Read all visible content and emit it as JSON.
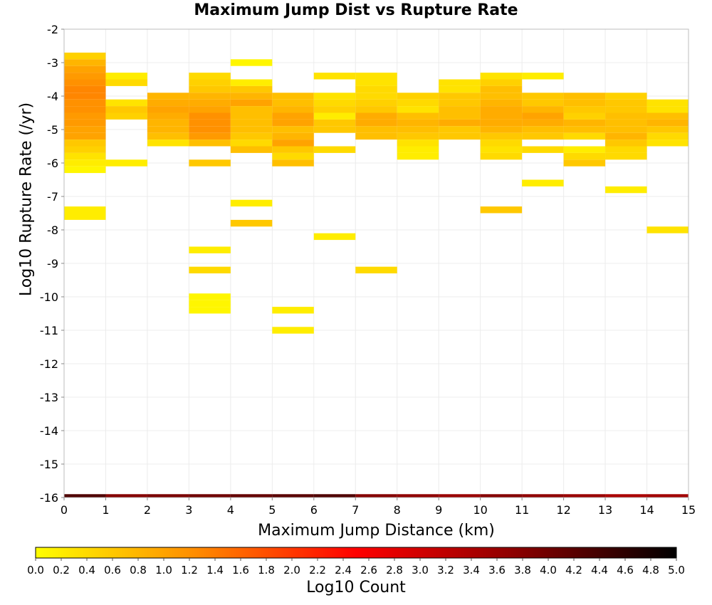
{
  "chart_data": {
    "type": "heatmap",
    "title": "Maximum Jump Dist vs Rupture Rate",
    "xlabel": "Maximum Jump Distance (km)",
    "ylabel": "Log10 Rupture Rate (/yr)",
    "xlim": [
      0,
      15
    ],
    "ylim": [
      -16,
      -2
    ],
    "x_ticks": [
      "0",
      "1",
      "2",
      "3",
      "4",
      "5",
      "6",
      "7",
      "8",
      "9",
      "10",
      "11",
      "12",
      "13",
      "14",
      "15"
    ],
    "y_ticks": [
      "-2",
      "-3",
      "-4",
      "-5",
      "-6",
      "-7",
      "-8",
      "-9",
      "-10",
      "-11",
      "-12",
      "-13",
      "-14",
      "-15",
      "-16"
    ],
    "grid": true,
    "bin_width_x": 1,
    "bin_height_y": 0.2,
    "colorbar": {
      "label": "Log10 Count",
      "range": [
        0.0,
        5.0
      ],
      "ticks": [
        "0.0",
        "0.2",
        "0.4",
        "0.6",
        "0.8",
        "1.0",
        "1.2",
        "1.4",
        "1.6",
        "1.8",
        "2.0",
        "2.2",
        "2.4",
        "2.6",
        "2.8",
        "3.0",
        "3.2",
        "3.4",
        "3.6",
        "3.8",
        "4.0",
        "4.2",
        "4.4",
        "4.6",
        "4.8",
        "5.0"
      ],
      "colors": [
        "#ffff00",
        "#ff8c00",
        "#ff0000",
        "#8b0000",
        "#000000"
      ]
    },
    "cells": [
      {
        "x": 0,
        "y": -2.8,
        "v": 0.5
      },
      {
        "x": 0,
        "y": -3.0,
        "v": 0.8
      },
      {
        "x": 0,
        "y": -3.2,
        "v": 1.0
      },
      {
        "x": 0,
        "y": -3.4,
        "v": 1.1
      },
      {
        "x": 0,
        "y": -3.6,
        "v": 1.2
      },
      {
        "x": 0,
        "y": -3.8,
        "v": 1.3
      },
      {
        "x": 0,
        "y": -4.0,
        "v": 1.3
      },
      {
        "x": 0,
        "y": -4.2,
        "v": 1.2
      },
      {
        "x": 0,
        "y": -4.4,
        "v": 1.2
      },
      {
        "x": 0,
        "y": -4.6,
        "v": 1.1
      },
      {
        "x": 0,
        "y": -4.8,
        "v": 1.1
      },
      {
        "x": 0,
        "y": -5.0,
        "v": 1.0
      },
      {
        "x": 0,
        "y": -5.2,
        "v": 1.0
      },
      {
        "x": 0,
        "y": -5.4,
        "v": 0.6
      },
      {
        "x": 0,
        "y": -5.6,
        "v": 0.5
      },
      {
        "x": 0,
        "y": -5.8,
        "v": 0.3
      },
      {
        "x": 0,
        "y": -6.0,
        "v": 0.2
      },
      {
        "x": 0,
        "y": -6.2,
        "v": 0.1
      },
      {
        "x": 0,
        "y": -7.4,
        "v": 0.2
      },
      {
        "x": 0,
        "y": -7.6,
        "v": 0.2
      },
      {
        "x": 1,
        "y": -3.4,
        "v": 0.2
      },
      {
        "x": 1,
        "y": -3.6,
        "v": 0.4
      },
      {
        "x": 1,
        "y": -4.2,
        "v": 0.3
      },
      {
        "x": 1,
        "y": -4.4,
        "v": 0.6
      },
      {
        "x": 1,
        "y": -4.6,
        "v": 0.5
      },
      {
        "x": 1,
        "y": -6.0,
        "v": 0.2
      },
      {
        "x": 2,
        "y": -4.0,
        "v": 0.8
      },
      {
        "x": 2,
        "y": -4.2,
        "v": 0.9
      },
      {
        "x": 2,
        "y": -4.4,
        "v": 1.0
      },
      {
        "x": 2,
        "y": -4.6,
        "v": 0.9
      },
      {
        "x": 2,
        "y": -4.8,
        "v": 0.8
      },
      {
        "x": 2,
        "y": -5.0,
        "v": 0.8
      },
      {
        "x": 2,
        "y": -5.2,
        "v": 0.7
      },
      {
        "x": 2,
        "y": -5.4,
        "v": 0.3
      },
      {
        "x": 3,
        "y": -3.4,
        "v": 0.4
      },
      {
        "x": 3,
        "y": -3.6,
        "v": 0.5
      },
      {
        "x": 3,
        "y": -3.8,
        "v": 0.6
      },
      {
        "x": 3,
        "y": -4.0,
        "v": 0.8
      },
      {
        "x": 3,
        "y": -4.2,
        "v": 0.9
      },
      {
        "x": 3,
        "y": -4.4,
        "v": 1.0
      },
      {
        "x": 3,
        "y": -4.6,
        "v": 1.2
      },
      {
        "x": 3,
        "y": -4.8,
        "v": 1.2
      },
      {
        "x": 3,
        "y": -5.0,
        "v": 1.2
      },
      {
        "x": 3,
        "y": -5.2,
        "v": 1.1
      },
      {
        "x": 3,
        "y": -5.4,
        "v": 0.7
      },
      {
        "x": 3,
        "y": -6.0,
        "v": 0.6
      },
      {
        "x": 3,
        "y": -8.6,
        "v": 0.2
      },
      {
        "x": 3,
        "y": -9.2,
        "v": 0.4
      },
      {
        "x": 3,
        "y": -10.0,
        "v": 0.1
      },
      {
        "x": 3,
        "y": -10.2,
        "v": 0.1
      },
      {
        "x": 3,
        "y": -10.4,
        "v": 0.1
      },
      {
        "x": 4,
        "y": -3.0,
        "v": 0.1
      },
      {
        "x": 4,
        "y": -3.6,
        "v": 0.2
      },
      {
        "x": 4,
        "y": -3.8,
        "v": 0.6
      },
      {
        "x": 4,
        "y": -4.0,
        "v": 0.8
      },
      {
        "x": 4,
        "y": -4.2,
        "v": 1.0
      },
      {
        "x": 4,
        "y": -4.4,
        "v": 0.7
      },
      {
        "x": 4,
        "y": -4.6,
        "v": 0.7
      },
      {
        "x": 4,
        "y": -4.8,
        "v": 0.7
      },
      {
        "x": 4,
        "y": -5.0,
        "v": 0.7
      },
      {
        "x": 4,
        "y": -5.2,
        "v": 0.6
      },
      {
        "x": 4,
        "y": -5.4,
        "v": 0.4
      },
      {
        "x": 4,
        "y": -5.6,
        "v": 0.7
      },
      {
        "x": 4,
        "y": -7.2,
        "v": 0.2
      },
      {
        "x": 4,
        "y": -7.8,
        "v": 0.6
      },
      {
        "x": 5,
        "y": -4.0,
        "v": 0.7
      },
      {
        "x": 5,
        "y": -4.2,
        "v": 0.7
      },
      {
        "x": 5,
        "y": -4.4,
        "v": 0.8
      },
      {
        "x": 5,
        "y": -4.6,
        "v": 1.0
      },
      {
        "x": 5,
        "y": -4.8,
        "v": 1.0
      },
      {
        "x": 5,
        "y": -5.0,
        "v": 0.7
      },
      {
        "x": 5,
        "y": -5.2,
        "v": 0.8
      },
      {
        "x": 5,
        "y": -5.4,
        "v": 1.0
      },
      {
        "x": 5,
        "y": -5.6,
        "v": 0.6
      },
      {
        "x": 5,
        "y": -5.8,
        "v": 0.4
      },
      {
        "x": 5,
        "y": -6.0,
        "v": 0.7
      },
      {
        "x": 5,
        "y": -10.4,
        "v": 0.2
      },
      {
        "x": 5,
        "y": -11.0,
        "v": 0.2
      },
      {
        "x": 6,
        "y": -3.4,
        "v": 0.3
      },
      {
        "x": 6,
        "y": -4.0,
        "v": 0.3
      },
      {
        "x": 6,
        "y": -4.2,
        "v": 0.4
      },
      {
        "x": 6,
        "y": -4.4,
        "v": 0.5
      },
      {
        "x": 6,
        "y": -4.6,
        "v": 0.2
      },
      {
        "x": 6,
        "y": -4.8,
        "v": 0.6
      },
      {
        "x": 6,
        "y": -5.0,
        "v": 0.6
      },
      {
        "x": 6,
        "y": -5.6,
        "v": 0.4
      },
      {
        "x": 6,
        "y": -8.2,
        "v": 0.2
      },
      {
        "x": 7,
        "y": -3.4,
        "v": 0.3
      },
      {
        "x": 7,
        "y": -3.6,
        "v": 0.3
      },
      {
        "x": 7,
        "y": -3.8,
        "v": 0.4
      },
      {
        "x": 7,
        "y": -4.0,
        "v": 0.4
      },
      {
        "x": 7,
        "y": -4.2,
        "v": 0.5
      },
      {
        "x": 7,
        "y": -4.4,
        "v": 0.6
      },
      {
        "x": 7,
        "y": -4.6,
        "v": 0.9
      },
      {
        "x": 7,
        "y": -4.8,
        "v": 0.9
      },
      {
        "x": 7,
        "y": -5.0,
        "v": 0.7
      },
      {
        "x": 7,
        "y": -5.2,
        "v": 0.7
      },
      {
        "x": 7,
        "y": -9.2,
        "v": 0.4
      },
      {
        "x": 8,
        "y": -4.0,
        "v": 0.5
      },
      {
        "x": 8,
        "y": -4.2,
        "v": 0.4
      },
      {
        "x": 8,
        "y": -4.4,
        "v": 0.3
      },
      {
        "x": 8,
        "y": -4.6,
        "v": 0.7
      },
      {
        "x": 8,
        "y": -4.8,
        "v": 0.8
      },
      {
        "x": 8,
        "y": -5.0,
        "v": 0.7
      },
      {
        "x": 8,
        "y": -5.2,
        "v": 0.6
      },
      {
        "x": 8,
        "y": -5.4,
        "v": 0.3
      },
      {
        "x": 8,
        "y": -5.6,
        "v": 0.2
      },
      {
        "x": 8,
        "y": -5.8,
        "v": 0.2
      },
      {
        "x": 9,
        "y": -3.6,
        "v": 0.3
      },
      {
        "x": 9,
        "y": -3.8,
        "v": 0.3
      },
      {
        "x": 9,
        "y": -4.0,
        "v": 0.6
      },
      {
        "x": 9,
        "y": -4.2,
        "v": 0.6
      },
      {
        "x": 9,
        "y": -4.4,
        "v": 0.7
      },
      {
        "x": 9,
        "y": -4.6,
        "v": 0.7
      },
      {
        "x": 9,
        "y": -4.8,
        "v": 0.9
      },
      {
        "x": 9,
        "y": -5.0,
        "v": 0.6
      },
      {
        "x": 9,
        "y": -5.2,
        "v": 0.6
      },
      {
        "x": 10,
        "y": -3.4,
        "v": 0.3
      },
      {
        "x": 10,
        "y": -3.6,
        "v": 0.5
      },
      {
        "x": 10,
        "y": -3.8,
        "v": 0.7
      },
      {
        "x": 10,
        "y": -4.0,
        "v": 0.7
      },
      {
        "x": 10,
        "y": -4.2,
        "v": 0.8
      },
      {
        "x": 10,
        "y": -4.4,
        "v": 0.9
      },
      {
        "x": 10,
        "y": -4.6,
        "v": 0.9
      },
      {
        "x": 10,
        "y": -4.8,
        "v": 0.9
      },
      {
        "x": 10,
        "y": -5.0,
        "v": 0.8
      },
      {
        "x": 10,
        "y": -5.2,
        "v": 0.6
      },
      {
        "x": 10,
        "y": -5.4,
        "v": 0.4
      },
      {
        "x": 10,
        "y": -5.6,
        "v": 0.3
      },
      {
        "x": 10,
        "y": -5.8,
        "v": 0.4
      },
      {
        "x": 10,
        "y": -7.4,
        "v": 0.6
      },
      {
        "x": 11,
        "y": -3.4,
        "v": 0.2
      },
      {
        "x": 11,
        "y": -4.0,
        "v": 0.6
      },
      {
        "x": 11,
        "y": -4.2,
        "v": 0.6
      },
      {
        "x": 11,
        "y": -4.4,
        "v": 0.8
      },
      {
        "x": 11,
        "y": -4.6,
        "v": 1.0
      },
      {
        "x": 11,
        "y": -4.8,
        "v": 0.9
      },
      {
        "x": 11,
        "y": -5.0,
        "v": 0.7
      },
      {
        "x": 11,
        "y": -5.2,
        "v": 0.6
      },
      {
        "x": 11,
        "y": -5.6,
        "v": 0.4
      },
      {
        "x": 11,
        "y": -6.6,
        "v": 0.2
      },
      {
        "x": 12,
        "y": -4.0,
        "v": 0.7
      },
      {
        "x": 12,
        "y": -4.2,
        "v": 0.7
      },
      {
        "x": 12,
        "y": -4.4,
        "v": 0.6
      },
      {
        "x": 12,
        "y": -4.6,
        "v": 0.5
      },
      {
        "x": 12,
        "y": -4.8,
        "v": 0.8
      },
      {
        "x": 12,
        "y": -5.0,
        "v": 0.7
      },
      {
        "x": 12,
        "y": -5.2,
        "v": 0.4
      },
      {
        "x": 12,
        "y": -5.6,
        "v": 0.2
      },
      {
        "x": 12,
        "y": -5.8,
        "v": 0.4
      },
      {
        "x": 12,
        "y": -6.0,
        "v": 0.6
      },
      {
        "x": 13,
        "y": -4.0,
        "v": 0.5
      },
      {
        "x": 13,
        "y": -4.2,
        "v": 0.6
      },
      {
        "x": 13,
        "y": -4.4,
        "v": 0.6
      },
      {
        "x": 13,
        "y": -4.6,
        "v": 0.7
      },
      {
        "x": 13,
        "y": -4.8,
        "v": 0.7
      },
      {
        "x": 13,
        "y": -5.0,
        "v": 0.7
      },
      {
        "x": 13,
        "y": -5.2,
        "v": 0.8
      },
      {
        "x": 13,
        "y": -5.4,
        "v": 0.6
      },
      {
        "x": 13,
        "y": -5.6,
        "v": 0.4
      },
      {
        "x": 13,
        "y": -5.8,
        "v": 0.4
      },
      {
        "x": 13,
        "y": -6.8,
        "v": 0.2
      },
      {
        "x": 14,
        "y": -4.2,
        "v": 0.3
      },
      {
        "x": 14,
        "y": -4.4,
        "v": 0.3
      },
      {
        "x": 14,
        "y": -4.6,
        "v": 0.7
      },
      {
        "x": 14,
        "y": -4.8,
        "v": 0.8
      },
      {
        "x": 14,
        "y": -5.0,
        "v": 0.6
      },
      {
        "x": 14,
        "y": -5.2,
        "v": 0.4
      },
      {
        "x": 14,
        "y": -5.4,
        "v": 0.3
      },
      {
        "x": 14,
        "y": -8.0,
        "v": 0.3
      }
    ],
    "bottom_row": {
      "y": -16,
      "values": [
        4.3,
        3.8,
        3.9,
        4.0,
        4.1,
        4.2,
        4.3,
        3.8,
        3.7,
        3.6,
        3.8,
        3.7,
        3.6,
        3.4,
        3.5
      ]
    }
  }
}
